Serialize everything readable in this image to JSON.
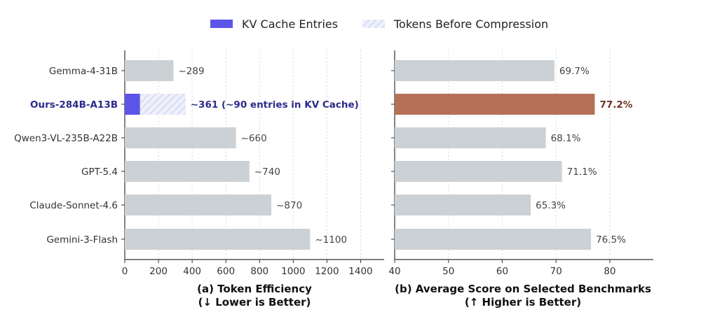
{
  "legend": {
    "items": [
      {
        "label": "KV Cache Entries",
        "color": "#5b55e8",
        "style": "solid"
      },
      {
        "label": "Tokens Before Compression",
        "color": "#dde0f5",
        "style": "hatched"
      }
    ]
  },
  "colors": {
    "bar_default": "#ccd1d5",
    "kv_cache": "#5b55e8",
    "hatch_fill": "#eef0fb",
    "hatch_line": "#c9cdef",
    "highlight_bar": "#b47157",
    "highlight_label_left": "#2d2a8a",
    "highlight_label_right": "#6e3527",
    "tick_text": "#333333",
    "value_text": "#444444",
    "axis": "#333333",
    "grid": "#d9d9d9"
  },
  "chart_data": [
    {
      "id": "token-efficiency",
      "type": "bar",
      "orientation": "horizontal",
      "title": "(a) Token Efficiency",
      "subtitle": "(↓ Lower is Better)",
      "categories": [
        "Gemma-4-31B",
        "Ours-284B-A13B",
        "Qwen3-VL-235B-A22B",
        "GPT-5.4",
        "Claude-Sonnet-4.6",
        "Gemini-3-Flash"
      ],
      "highlight_category": "Ours-284B-A13B",
      "series": [
        {
          "name": "Tokens Before Compression",
          "values": [
            289,
            361,
            660,
            740,
            870,
            1100
          ]
        },
        {
          "name": "KV Cache Entries",
          "values": [
            null,
            90,
            null,
            null,
            null,
            null
          ]
        }
      ],
      "value_labels": [
        "~289",
        "~361 (~90 entries in KV Cache)",
        "~660",
        "~740",
        "~870",
        "~1100"
      ],
      "xlim": [
        0,
        1550
      ],
      "xticks": [
        0,
        200,
        400,
        600,
        800,
        1000,
        1200,
        1400
      ],
      "grid": "x dotted"
    },
    {
      "id": "average-score",
      "type": "bar",
      "orientation": "horizontal",
      "title": "(b) Average Score on Selected Benchmarks",
      "subtitle": "(↑ Higher is Better)",
      "categories": [
        "Gemma-4-31B",
        "Ours-284B-A13B",
        "Qwen3-VL-235B-A22B",
        "GPT-5.4",
        "Claude-Sonnet-4.6",
        "Gemini-3-Flash"
      ],
      "highlight_category": "Ours-284B-A13B",
      "values": [
        69.7,
        77.2,
        68.1,
        71.1,
        65.3,
        76.5
      ],
      "value_labels": [
        "69.7%",
        "77.2%",
        "68.1%",
        "71.1%",
        "65.3%",
        "76.5%"
      ],
      "xlim": [
        40,
        89
      ],
      "xticks": [
        40,
        50,
        60,
        70,
        80
      ],
      "grid": "x dotted"
    }
  ]
}
